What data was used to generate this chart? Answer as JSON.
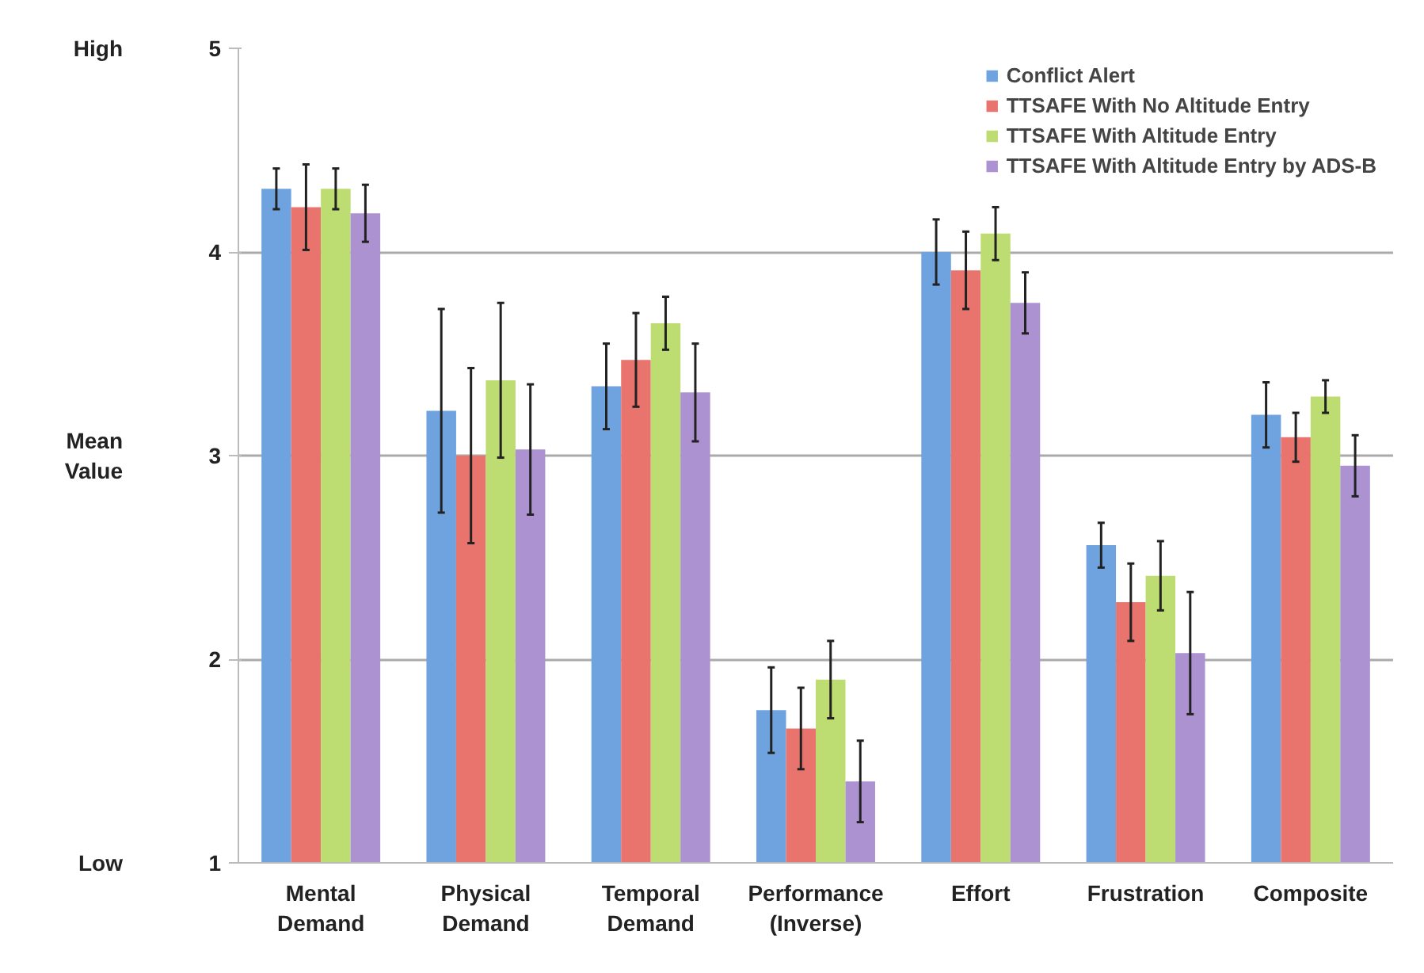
{
  "chart_data": {
    "type": "bar",
    "ylabel": "Mean Value",
    "annotations": [
      "High",
      "Low"
    ],
    "categories": [
      "Mental Demand",
      "Physical Demand",
      "Temporal Demand",
      "Performance (Inverse)",
      "Effort",
      "Frustration",
      "Composite"
    ],
    "series": [
      {
        "name": "Conflict Alert",
        "color": "#6fa3e0",
        "values": [
          4.31,
          3.22,
          3.34,
          1.75,
          4.0,
          2.56,
          3.2
        ],
        "errors": [
          0.1,
          0.5,
          0.21,
          0.21,
          0.16,
          0.11,
          0.16
        ]
      },
      {
        "name": "TTSAFE With No Altitude Entry",
        "color": "#e9736d",
        "values": [
          4.22,
          3.0,
          3.47,
          1.66,
          3.91,
          2.28,
          3.09
        ],
        "errors": [
          0.21,
          0.43,
          0.23,
          0.2,
          0.19,
          0.19,
          0.12
        ]
      },
      {
        "name": "TTSAFE With Altitude Entry",
        "color": "#bddc72",
        "values": [
          4.31,
          3.37,
          3.65,
          1.9,
          4.09,
          2.41,
          3.29
        ],
        "errors": [
          0.1,
          0.38,
          0.13,
          0.19,
          0.13,
          0.17,
          0.08
        ]
      },
      {
        "name": "TTSAFE With Altitude Entry by ADS-B",
        "color": "#ad92d2",
        "values": [
          4.19,
          3.03,
          3.31,
          1.4,
          3.75,
          2.03,
          2.95
        ],
        "errors": [
          0.14,
          0.32,
          0.24,
          0.2,
          0.15,
          0.3,
          0.15
        ]
      }
    ],
    "ylim": [
      1,
      5
    ],
    "yticks": [
      1,
      2,
      3,
      4,
      5
    ],
    "grid": "y",
    "legend": "top right"
  }
}
